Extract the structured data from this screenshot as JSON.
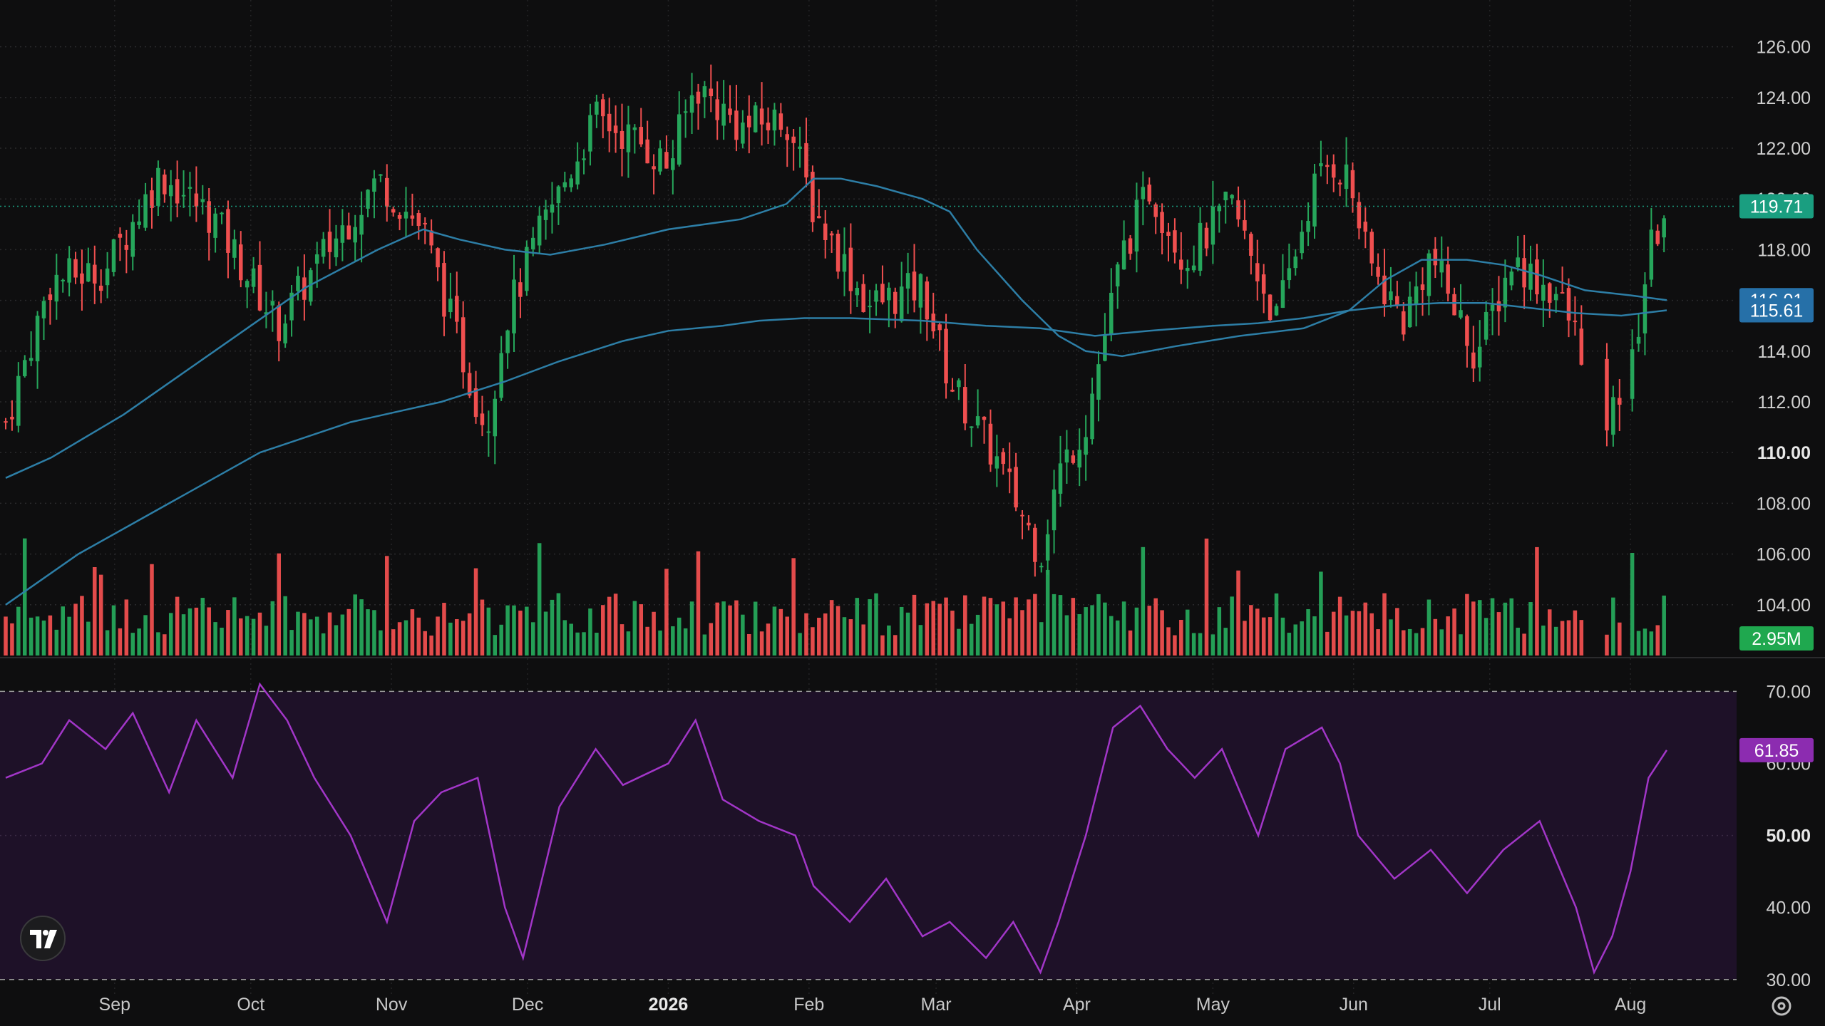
{
  "chart_data": [
    {
      "type": "candlestick",
      "ylim": [
        102,
        127
      ],
      "y_ticks": [
        "126.00",
        "124.00",
        "122.00",
        "120.00",
        "118.00",
        "116.00",
        "114.00",
        "112.00",
        "110.00",
        "108.00",
        "106.00",
        "104.00"
      ],
      "bold_tick": "110.00",
      "x_labels": [
        {
          "label": "Sep",
          "day": 28
        },
        {
          "label": "Oct",
          "day": 58
        },
        {
          "label": "Nov",
          "day": 89
        },
        {
          "label": "Dec",
          "day": 119
        },
        {
          "label": "2026",
          "day": 150,
          "bold": true
        },
        {
          "label": "Feb",
          "day": 181
        },
        {
          "label": "Mar",
          "day": 209
        },
        {
          "label": "Apr",
          "day": 240
        },
        {
          "label": "May",
          "day": 270
        },
        {
          "label": "Jun",
          "day": 301
        },
        {
          "label": "Jul",
          "day": 331
        },
        {
          "label": "Aug",
          "day": 362
        }
      ],
      "day_range": [
        4,
        370
      ],
      "price_path": [
        [
          4,
          111.2
        ],
        [
          14,
          116.8
        ],
        [
          26,
          117.2
        ],
        [
          38,
          121.0
        ],
        [
          50,
          119.2
        ],
        [
          64,
          115.0
        ],
        [
          74,
          117.8
        ],
        [
          86,
          120.8
        ],
        [
          96,
          118.8
        ],
        [
          106,
          113.0
        ],
        [
          110,
          111.0
        ],
        [
          114,
          115.2
        ],
        [
          122,
          118.8
        ],
        [
          134,
          123.2
        ],
        [
          144,
          122.2
        ],
        [
          150,
          121.3
        ],
        [
          156,
          124.5
        ],
        [
          166,
          122.8
        ],
        [
          176,
          123.2
        ],
        [
          182,
          119.6
        ],
        [
          194,
          115.8
        ],
        [
          206,
          116.5
        ],
        [
          212,
          112.8
        ],
        [
          222,
          109.8
        ],
        [
          232,
          106.0
        ],
        [
          236,
          109.2
        ],
        [
          242,
          111.2
        ],
        [
          250,
          117.8
        ],
        [
          256,
          120.4
        ],
        [
          264,
          117.6
        ],
        [
          274,
          119.8
        ],
        [
          284,
          115.2
        ],
        [
          292,
          120.4
        ],
        [
          296,
          121.5
        ],
        [
          300,
          120.8
        ],
        [
          304,
          117.6
        ],
        [
          312,
          115.2
        ],
        [
          318,
          117.8
        ],
        [
          328,
          113.8
        ],
        [
          336,
          117.6
        ],
        [
          346,
          116.2
        ],
        [
          352,
          113.8
        ],
        [
          354,
          108.8
        ],
        [
          360,
          112.5
        ],
        [
          362,
          113.0
        ],
        [
          366,
          117.8
        ],
        [
          370,
          119.71
        ]
      ],
      "gap_days": [
        [
          352,
          356
        ],
        [
          360,
          362
        ]
      ],
      "ma_fast": [
        [
          4,
          109.0
        ],
        [
          14,
          109.8
        ],
        [
          30,
          111.5
        ],
        [
          50,
          114.0
        ],
        [
          70,
          116.5
        ],
        [
          86,
          118.0
        ],
        [
          96,
          118.8
        ],
        [
          104,
          118.4
        ],
        [
          114,
          118.0
        ],
        [
          124,
          117.8
        ],
        [
          136,
          118.2
        ],
        [
          150,
          118.8
        ],
        [
          166,
          119.2
        ],
        [
          176,
          119.8
        ],
        [
          182,
          120.8
        ],
        [
          188,
          120.8
        ],
        [
          196,
          120.5
        ],
        [
          206,
          120.0
        ],
        [
          212,
          119.5
        ],
        [
          218,
          118.0
        ],
        [
          228,
          116.0
        ],
        [
          236,
          114.6
        ],
        [
          242,
          114.0
        ],
        [
          250,
          113.8
        ],
        [
          262,
          114.2
        ],
        [
          276,
          114.6
        ],
        [
          290,
          114.9
        ],
        [
          300,
          115.6
        ],
        [
          308,
          116.8
        ],
        [
          316,
          117.6
        ],
        [
          326,
          117.6
        ],
        [
          334,
          117.4
        ],
        [
          342,
          117.0
        ],
        [
          352,
          116.4
        ],
        [
          362,
          116.2
        ],
        [
          370,
          116.01
        ]
      ],
      "ma_slow": [
        [
          4,
          104.0
        ],
        [
          20,
          106.0
        ],
        [
          40,
          108.0
        ],
        [
          60,
          110.0
        ],
        [
          80,
          111.2
        ],
        [
          90,
          111.6
        ],
        [
          100,
          112.0
        ],
        [
          114,
          112.8
        ],
        [
          126,
          113.6
        ],
        [
          140,
          114.4
        ],
        [
          150,
          114.8
        ],
        [
          162,
          115.0
        ],
        [
          170,
          115.2
        ],
        [
          180,
          115.3
        ],
        [
          190,
          115.3
        ],
        [
          206,
          115.2
        ],
        [
          220,
          115.0
        ],
        [
          232,
          114.9
        ],
        [
          244,
          114.6
        ],
        [
          256,
          114.8
        ],
        [
          270,
          115.0
        ],
        [
          280,
          115.1
        ],
        [
          290,
          115.3
        ],
        [
          300,
          115.6
        ],
        [
          310,
          115.8
        ],
        [
          320,
          115.9
        ],
        [
          330,
          115.9
        ],
        [
          340,
          115.7
        ],
        [
          350,
          115.5
        ],
        [
          360,
          115.4
        ],
        [
          370,
          115.61
        ]
      ],
      "last_price": "119.71",
      "ma_fast_label": "116.01",
      "ma_slow_label": "115.61",
      "volume_label": "2.95M",
      "colors": {
        "up": "#26a65b",
        "down": "#ef4f4f",
        "ma": "#2d7ea6",
        "last_badge": "#1a9e80",
        "ma_badge": "#2670a8",
        "vol_badge": "#1fa84f",
        "rsi_line": "#a236c8",
        "rsi_badge": "#8c2cb0",
        "rsi_band": "#1e1128"
      }
    },
    {
      "type": "line",
      "title": "",
      "ylim": [
        28,
        74
      ],
      "y_ticks": [
        "70.00",
        "60.00",
        "50.00",
        "40.00",
        "30.00"
      ],
      "bold_tick": "50.00",
      "bands": [
        30,
        70
      ],
      "rsi_path": [
        [
          4,
          58
        ],
        [
          12,
          60
        ],
        [
          18,
          66
        ],
        [
          26,
          62
        ],
        [
          32,
          67
        ],
        [
          40,
          56
        ],
        [
          46,
          66
        ],
        [
          54,
          58
        ],
        [
          60,
          71
        ],
        [
          66,
          66
        ],
        [
          72,
          58
        ],
        [
          80,
          50
        ],
        [
          88,
          38
        ],
        [
          94,
          52
        ],
        [
          100,
          56
        ],
        [
          108,
          58
        ],
        [
          114,
          40
        ],
        [
          118,
          33
        ],
        [
          126,
          54
        ],
        [
          134,
          62
        ],
        [
          140,
          57
        ],
        [
          150,
          60
        ],
        [
          156,
          66
        ],
        [
          162,
          55
        ],
        [
          170,
          52
        ],
        [
          178,
          50
        ],
        [
          182,
          43
        ],
        [
          190,
          38
        ],
        [
          198,
          44
        ],
        [
          206,
          36
        ],
        [
          212,
          38
        ],
        [
          220,
          33
        ],
        [
          226,
          38
        ],
        [
          232,
          31
        ],
        [
          236,
          38
        ],
        [
          242,
          50
        ],
        [
          248,
          65
        ],
        [
          254,
          68
        ],
        [
          260,
          62
        ],
        [
          266,
          58
        ],
        [
          272,
          62
        ],
        [
          280,
          50
        ],
        [
          286,
          62
        ],
        [
          294,
          65
        ],
        [
          298,
          60
        ],
        [
          302,
          50
        ],
        [
          310,
          44
        ],
        [
          318,
          48
        ],
        [
          326,
          42
        ],
        [
          334,
          48
        ],
        [
          342,
          52
        ],
        [
          350,
          40
        ],
        [
          354,
          31
        ],
        [
          358,
          36
        ],
        [
          362,
          45
        ],
        [
          366,
          58
        ],
        [
          370,
          61.85
        ]
      ],
      "last_value": "61.85"
    }
  ],
  "header": {
    "logo_name": "TradingView"
  }
}
